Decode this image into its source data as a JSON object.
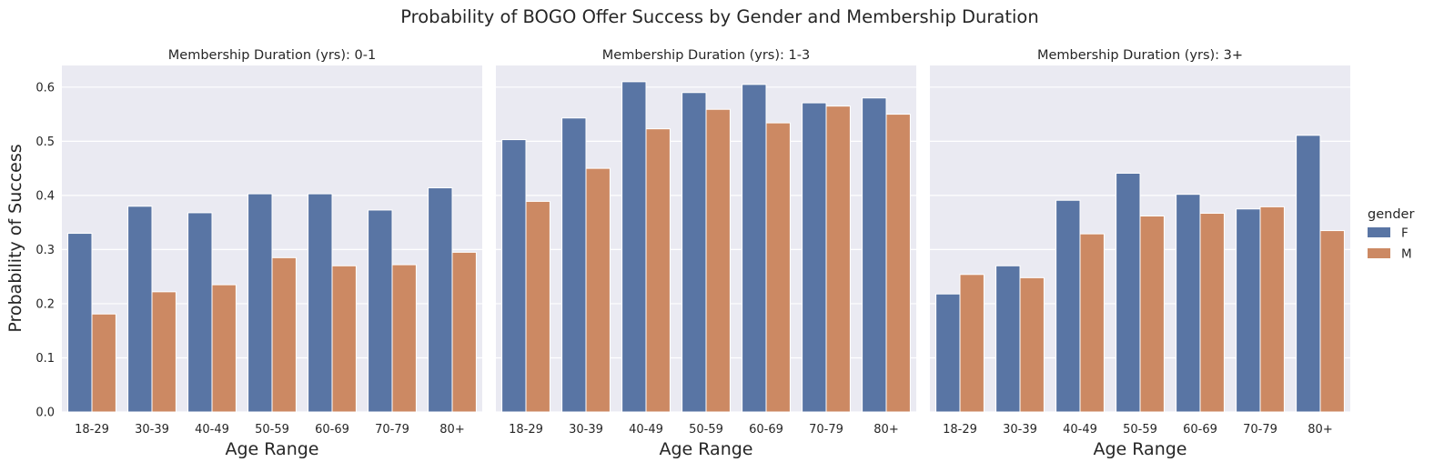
{
  "chart_data": {
    "type": "bar",
    "title": "Probability of BOGO Offer Success by Gender and Membership Duration",
    "ylabel": "Probability of Success",
    "xlabel": "Age Range",
    "ylim": [
      0,
      0.64
    ],
    "yticks": [
      "0.0",
      "0.1",
      "0.2",
      "0.3",
      "0.4",
      "0.5",
      "0.6"
    ],
    "ytick_values": [
      0,
      0.1,
      0.2,
      0.3,
      0.4,
      0.5,
      0.6
    ],
    "categories": [
      "18-29",
      "30-39",
      "40-49",
      "50-59",
      "60-69",
      "70-79",
      "80+"
    ],
    "legend": {
      "title": "gender",
      "placement": "right",
      "entries": [
        {
          "label": "F",
          "color": "#5975a4"
        },
        {
          "label": "M",
          "color": "#cc8963"
        }
      ]
    },
    "panels": [
      {
        "title": "Membership Duration (yrs): 0-1",
        "series": [
          {
            "name": "F",
            "values": [
              0.33,
              0.38,
              0.368,
              0.403,
              0.403,
              0.373,
              0.414
            ]
          },
          {
            "name": "M",
            "values": [
              0.181,
              0.222,
              0.235,
              0.285,
              0.27,
              0.272,
              0.295
            ]
          }
        ]
      },
      {
        "title": "Membership Duration (yrs): 1-3",
        "series": [
          {
            "name": "F",
            "values": [
              0.503,
              0.543,
              0.61,
              0.59,
              0.605,
              0.571,
              0.58
            ]
          },
          {
            "name": "M",
            "values": [
              0.389,
              0.45,
              0.523,
              0.559,
              0.534,
              0.565,
              0.55
            ]
          }
        ]
      },
      {
        "title": "Membership Duration (yrs): 3+",
        "series": [
          {
            "name": "F",
            "values": [
              0.218,
              0.27,
              0.391,
              0.441,
              0.402,
              0.375,
              0.511
            ]
          },
          {
            "name": "M",
            "values": [
              0.254,
              0.248,
              0.329,
              0.362,
              0.367,
              0.379,
              0.335
            ]
          }
        ]
      }
    ]
  }
}
